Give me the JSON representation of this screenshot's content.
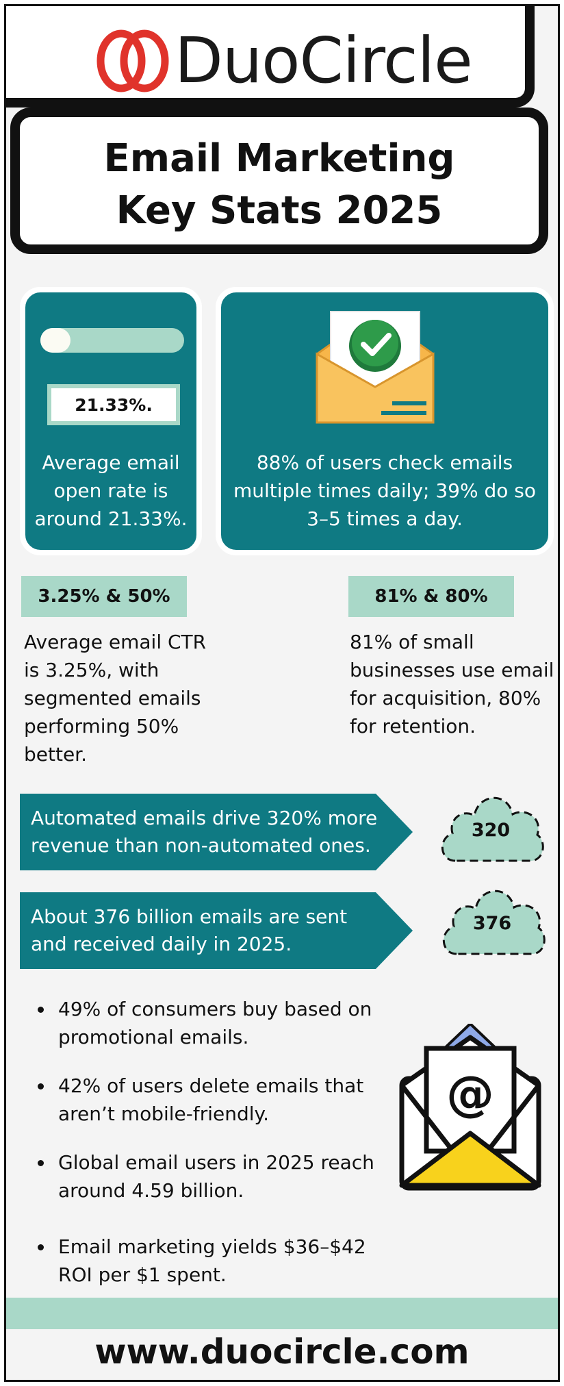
{
  "header": {
    "brand": "DuoCircle",
    "logo_icon": "interlocking-rings-icon",
    "title_line1": "Email Marketing",
    "title_line2": "Key Stats 2025"
  },
  "colors": {
    "teal": "#0f7a83",
    "mint": "#a9d8c8",
    "brand_red": "#e0332b",
    "envelope_orange": "#f7b64a",
    "check_green": "#2e9b4a",
    "envelope_yellow": "#f8d21c",
    "envelope_flap_blue": "#8ea9e8"
  },
  "card_open_rate": {
    "progress_fraction": 0.2133,
    "badge": "21.33%.",
    "text": "Average email open rate is around 21.33%."
  },
  "card_check_emails": {
    "icon": "envelope-check-icon",
    "text": "88% of users check emails multiple times daily; 39% do so 3–5 times a day."
  },
  "stat_ctr": {
    "badge": "3.25% & 50%",
    "text": "Average email CTR is 3.25%, with segmented emails performing 50% better."
  },
  "stat_small_business": {
    "badge": "81% & 80%",
    "text": "81% of small businesses use email for acquisition, 80% for retention."
  },
  "banner_automated": {
    "text": "Automated emails drive 320% more revenue than non-automated ones.",
    "cloud_value": "320"
  },
  "banner_volume": {
    "text": "About 376 billion emails are sent and received daily in 2025.",
    "cloud_value": "376"
  },
  "bullets": [
    "49% of consumers buy based on promotional emails.",
    "42% of users delete emails that aren’t mobile-friendly.",
    "Global email users in 2025 reach around 4.59 billion.",
    "Email marketing yields $36–$42 ROI per $1 spent."
  ],
  "at_envelope_icon": "envelope-at-icon",
  "footer": {
    "url": "www.duocircle.com"
  }
}
